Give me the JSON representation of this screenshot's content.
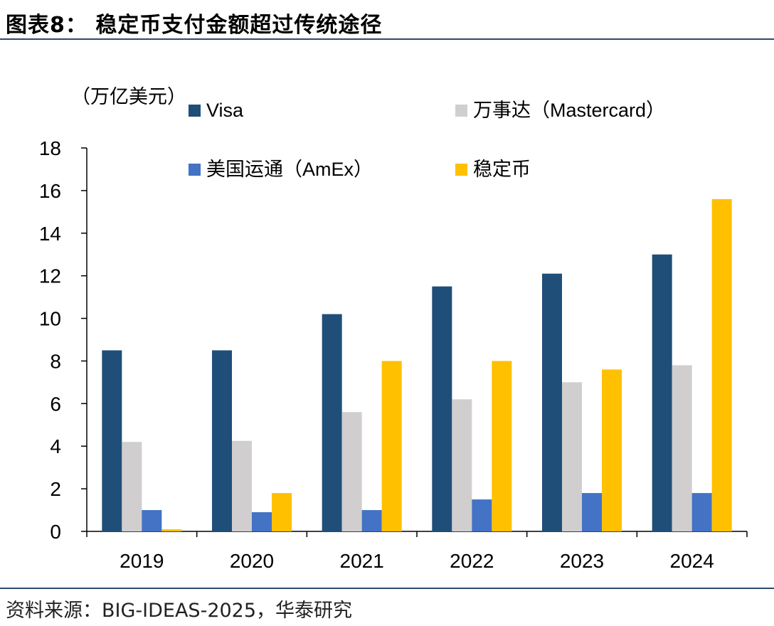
{
  "header": {
    "title": "图表8：  稳定币支付金额超过传统途径"
  },
  "footer": {
    "source": "资料来源：BIG-IDEAS-2025，华泰研究"
  },
  "chart_data": {
    "type": "bar",
    "unit_label": "（万亿美元）",
    "categories": [
      "2019",
      "2020",
      "2021",
      "2022",
      "2023",
      "2024"
    ],
    "series": [
      {
        "name": "Visa",
        "color": "#1f4e79",
        "values": [
          8.5,
          8.5,
          10.2,
          11.5,
          12.1,
          13.0
        ]
      },
      {
        "name": "万事达（Mastercard）",
        "color": "#d0cece",
        "values": [
          4.2,
          4.25,
          5.6,
          6.2,
          7.0,
          7.8
        ]
      },
      {
        "name": "美国运通（AmEx）",
        "color": "#4472c4",
        "values": [
          1.0,
          0.9,
          1.0,
          1.5,
          1.8,
          1.8
        ]
      },
      {
        "name": "稳定币",
        "color": "#ffc000",
        "values": [
          0.1,
          1.8,
          8.0,
          8.0,
          7.6,
          15.6
        ]
      }
    ],
    "ylim": [
      0,
      18
    ],
    "yticks": [
      0,
      2,
      4,
      6,
      8,
      10,
      12,
      14,
      16,
      18
    ],
    "legend_position": "top",
    "grid": false
  }
}
